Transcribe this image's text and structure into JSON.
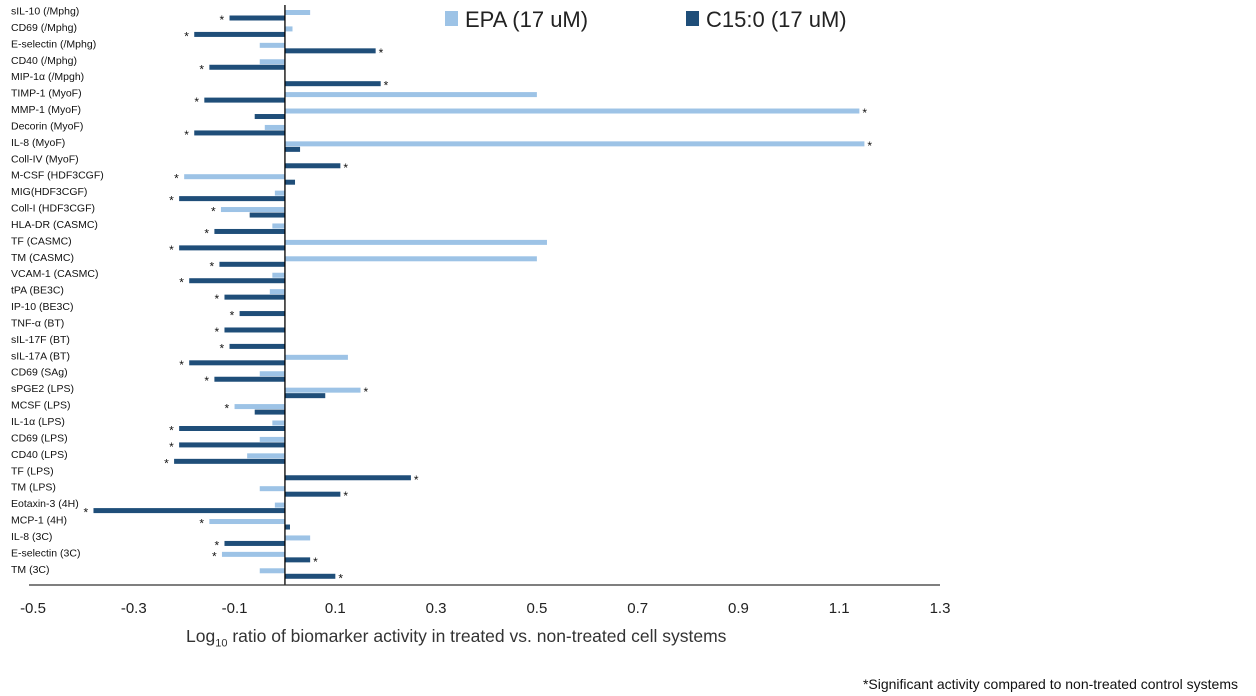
{
  "chart_data": {
    "type": "bar",
    "orientation": "horizontal",
    "categories": [
      "sIL-10 (/Mphg)",
      "CD69 (/Mphg)",
      "E-selectin (/Mphg)",
      "CD40 (/Mphg)",
      "MIP-1α (/Mpgh)",
      "TIMP-1 (MyoF)",
      "MMP-1 (MyoF)",
      "Decorin (MyoF)",
      "IL-8 (MyoF)",
      "Coll-IV (MyoF)",
      "M-CSF (HDF3CGF)",
      "MIG(HDF3CGF)",
      "Coll-I (HDF3CGF)",
      "HLA-DR (CASMC)",
      "TF (CASMC)",
      "TM (CASMC)",
      "VCAM-1 (CASMC)",
      "tPA (BE3C)",
      "IP-10 (BE3C)",
      "TNF-α (BT)",
      "sIL-17F (BT)",
      "sIL-17A (BT)",
      "CD69 (SAg)",
      "sPGE2 (LPS)",
      "MCSF (LPS)",
      "IL-1α (LPS)",
      "CD69 (LPS)",
      "CD40 (LPS)",
      "TF (LPS)",
      "TM (LPS)",
      "Eotaxin-3 (4H)",
      "MCP-1 (4H)",
      "IL-8 (3C)",
      "E-selectin (3C)",
      "TM (3C)"
    ],
    "series": [
      {
        "name": "EPA (17 uM)",
        "color": "#9dc3e6",
        "values": [
          0.05,
          0.015,
          -0.05,
          -0.05,
          0,
          0.5,
          1.14,
          -0.04,
          1.15,
          0,
          -0.2,
          -0.02,
          -0.127,
          -0.025,
          0.52,
          0.5,
          -0.025,
          -0.03,
          0,
          0,
          0,
          0.125,
          -0.05,
          0.15,
          -0.1,
          -0.025,
          -0.05,
          -0.075,
          0,
          -0.05,
          -0.02,
          -0.15,
          0.05,
          -0.125,
          -0.05
        ],
        "significant": [
          false,
          false,
          false,
          false,
          false,
          false,
          true,
          false,
          true,
          false,
          true,
          false,
          true,
          false,
          false,
          false,
          false,
          false,
          false,
          false,
          false,
          false,
          false,
          true,
          true,
          false,
          false,
          false,
          false,
          false,
          false,
          true,
          false,
          true,
          false
        ]
      },
      {
        "name": "C15:0 (17 uM)",
        "color": "#1f4e79",
        "values": [
          -0.11,
          -0.18,
          0.18,
          -0.15,
          0.19,
          -0.16,
          -0.06,
          -0.18,
          0.03,
          0.11,
          0.02,
          -0.21,
          -0.07,
          -0.14,
          -0.21,
          -0.13,
          -0.19,
          -0.12,
          -0.09,
          -0.12,
          -0.11,
          -0.19,
          -0.14,
          0.08,
          -0.06,
          -0.21,
          -0.21,
          -0.22,
          0.25,
          0.11,
          -0.38,
          0.01,
          -0.12,
          0.05,
          0.1
        ],
        "significant": [
          true,
          true,
          true,
          true,
          true,
          true,
          false,
          true,
          false,
          true,
          false,
          true,
          false,
          true,
          true,
          true,
          true,
          true,
          true,
          true,
          true,
          true,
          true,
          false,
          false,
          true,
          true,
          true,
          true,
          true,
          true,
          false,
          true,
          true,
          true
        ]
      }
    ],
    "xlim": [
      -0.5,
      1.3
    ],
    "xticks": [
      "-0.5",
      "-0.3",
      "-0.1",
      "0.1",
      "0.3",
      "0.5",
      "0.7",
      "0.9",
      "1.1",
      "1.3"
    ],
    "xlabel_main": "Log",
    "xlabel_sub": "10",
    "xlabel_rest": " ratio of biomarker activity in treated vs. non-treated cell systems",
    "significance_marker": "*",
    "footnote": "*Significant activity compared to non-treated control systems",
    "legend_position": "top-right",
    "grid": false
  }
}
